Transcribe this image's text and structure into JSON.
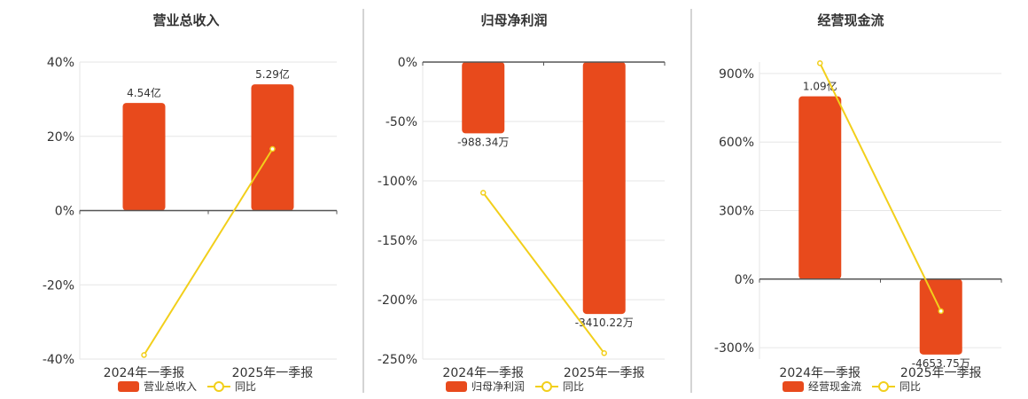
{
  "colors": {
    "bar": "#e84a1c",
    "line": "#f2cf1b",
    "grid": "#e6e6e6",
    "axis": "#555555",
    "divider": "#aaaaaa"
  },
  "chart_data": [
    {
      "type": "bar",
      "title": "营业总收入",
      "categories": [
        "2024年一季报",
        "2025年一季报"
      ],
      "ylim": [
        -40,
        40
      ],
      "yticks": [
        40,
        20,
        0,
        -20,
        -40
      ],
      "tick_labels": [
        "40%",
        "20%",
        "0%",
        "-20%",
        "-40%"
      ],
      "bar_values": [
        29,
        34
      ],
      "bar_labels": [
        "4.54亿",
        "5.29亿"
      ],
      "line_values": [
        -38.9,
        16.6
      ],
      "legend": [
        "营业总收入",
        "同比"
      ],
      "grid": true
    },
    {
      "type": "bar",
      "title": "归母净利润",
      "categories": [
        "2024年一季报",
        "2025年一季报"
      ],
      "ylim": [
        -250,
        0
      ],
      "yticks": [
        0,
        -50,
        -100,
        -150,
        -200,
        -250
      ],
      "tick_labels": [
        "0%",
        "-50%",
        "-100%",
        "-150%",
        "-200%",
        "-250%"
      ],
      "bar_values": [
        -60,
        -212
      ],
      "bar_labels": [
        "-988.34万",
        "-3410.22万"
      ],
      "line_values": [
        -110,
        -245
      ],
      "legend": [
        "归母净利润",
        "同比"
      ],
      "grid": true
    },
    {
      "type": "bar",
      "title": "经营现金流",
      "categories": [
        "2024年一季报",
        "2025年一季报"
      ],
      "ylim": [
        -350,
        950
      ],
      "yticks": [
        900,
        600,
        300,
        0,
        -300
      ],
      "tick_labels": [
        "900%",
        "600%",
        "300%",
        "0%",
        "-300%"
      ],
      "bar_values": [
        800,
        -330
      ],
      "bar_labels": [
        "1.09亿",
        "-4653.75万"
      ],
      "line_values": [
        945,
        -140
      ],
      "legend": [
        "经营现金流",
        "同比"
      ],
      "grid": true
    }
  ]
}
